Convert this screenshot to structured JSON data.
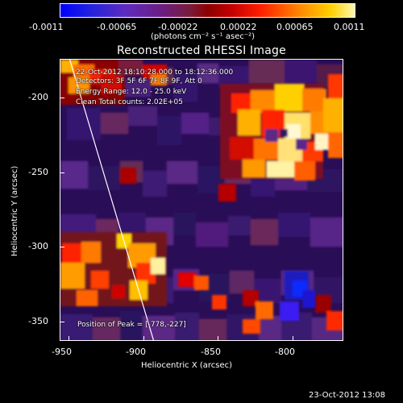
{
  "colorbar": {
    "ticks": [
      "-0.0011",
      "-0.00065",
      "-0.00022",
      "0.00022",
      "0.00065",
      "0.0011"
    ],
    "unit": "(photons cm⁻² s⁻¹ asec⁻²)"
  },
  "image": {
    "title": "Reconstructed RHESSI Image",
    "info": [
      "22-Oct-2012 18:10:28.000 to 18:12:36.000",
      "Detectors: 3F 5F 6F 7F 8F 9F, Att 0",
      "Energy Range: 12.0 - 25.0 keV",
      "Clean    Total counts: 2.02E+05"
    ],
    "peak": "Position of Peak = [-778,-227]"
  },
  "axes": {
    "x_label": "Heliocentric X (arcsec)",
    "y_label": "Heliocentric Y (arcsec)",
    "x_ticks": [
      "-950",
      "-900",
      "-850",
      "-800"
    ],
    "y_ticks": [
      "-200",
      "-250",
      "-300",
      "-350"
    ]
  },
  "timestamp": "23-Oct-2012 13:08"
}
